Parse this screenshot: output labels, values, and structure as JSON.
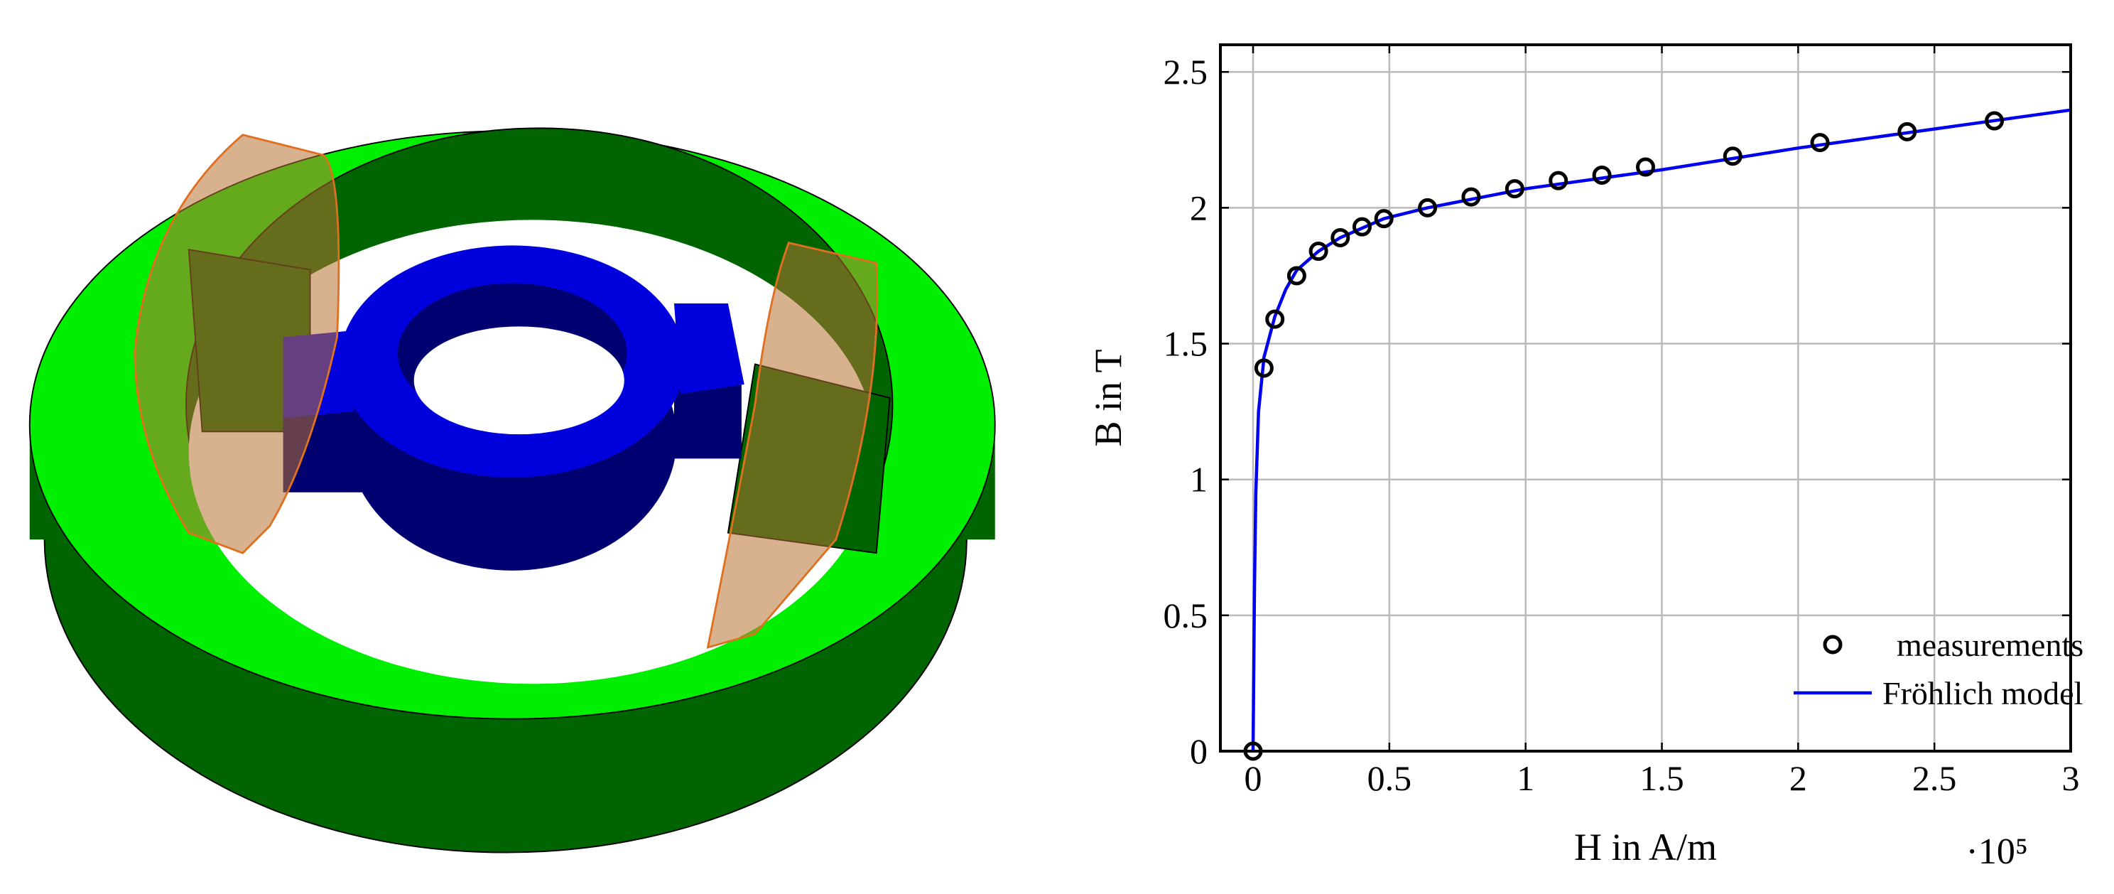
{
  "chart_data": {
    "type": "scatter-line",
    "xlabel": "H in A/m",
    "ylabel": "B in T",
    "x_multiplier": "·10⁵",
    "xlim": [
      -0.12,
      3
    ],
    "ylim": [
      0,
      2.6
    ],
    "xticks": [
      0,
      0.5,
      1,
      1.5,
      2,
      2.5,
      3
    ],
    "yticks": [
      0,
      0.5,
      1,
      1.5,
      2,
      2.5
    ],
    "grid": true,
    "legend": "lower right",
    "series": [
      {
        "name": "measurements",
        "color": "#000000",
        "marker": "circle",
        "x": [
          0,
          0.04,
          0.08,
          0.16,
          0.24,
          0.32,
          0.4,
          0.48,
          0.64,
          0.8,
          0.96,
          1.12,
          1.28,
          1.44,
          1.76,
          2.08,
          2.4,
          2.72
        ],
        "values": [
          0,
          1.41,
          1.59,
          1.75,
          1.84,
          1.89,
          1.93,
          1.96,
          2.0,
          2.04,
          2.07,
          2.1,
          2.12,
          2.15,
          2.19,
          2.24,
          2.28,
          2.32
        ]
      },
      {
        "name": "Fröhlich model",
        "color": "#0000ee",
        "marker": "line",
        "x": [
          0,
          0.005,
          0.01,
          0.02,
          0.04,
          0.08,
          0.12,
          0.16,
          0.24,
          0.32,
          0.48,
          0.64,
          1.0,
          1.5,
          2.0,
          2.5,
          3.0
        ],
        "values": [
          0,
          0.6,
          0.95,
          1.25,
          1.45,
          1.6,
          1.7,
          1.77,
          1.84,
          1.89,
          1.96,
          2.0,
          2.07,
          2.14,
          2.22,
          2.29,
          2.36
        ]
      }
    ]
  }
}
